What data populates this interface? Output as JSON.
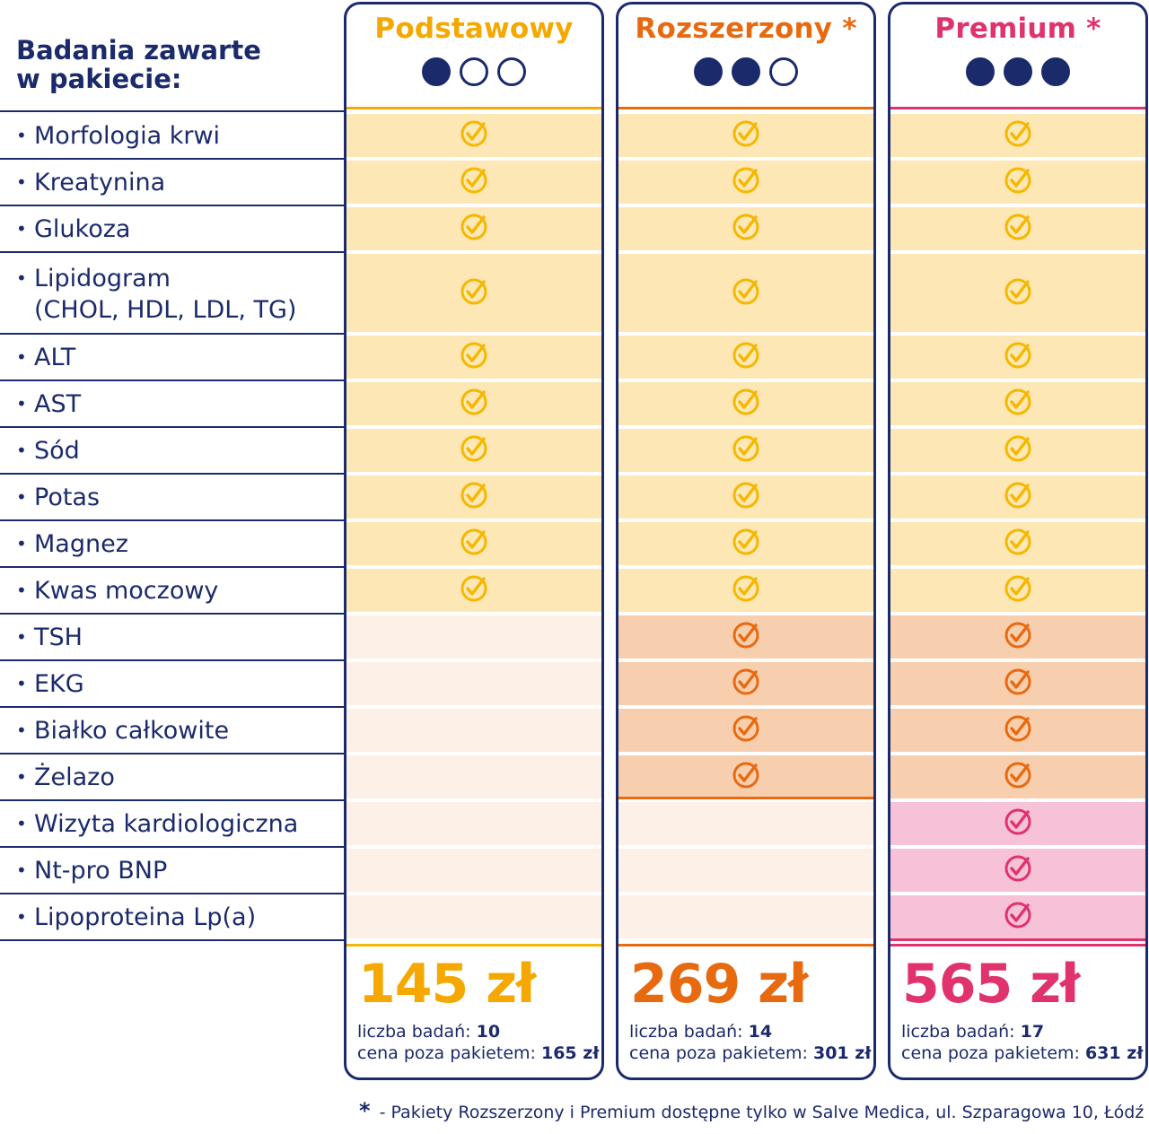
{
  "header": {
    "title_line1": "Badania zawarte",
    "title_line2": "w pakiecie:"
  },
  "packages": [
    {
      "name": "Podstawowy",
      "dots": [
        true,
        false,
        false
      ],
      "color": "#f5a800",
      "price": "145 zł",
      "count_label": "liczba badań:",
      "count": "10",
      "outside_label": "cena poza pakietem:",
      "outside_price": "165 zł"
    },
    {
      "name": "Rozszerzony *",
      "dots": [
        true,
        true,
        false
      ],
      "color": "#e86a10",
      "price": "269 zł",
      "count_label": "liczba badań:",
      "count": "14",
      "outside_label": "cena poza pakietem:",
      "outside_price": "301 zł"
    },
    {
      "name": "Premium *",
      "dots": [
        true,
        true,
        true
      ],
      "color": "#e0336e",
      "price": "565 zł",
      "count_label": "liczba badań:",
      "count": "17",
      "outside_label": "cena poza pakietem:",
      "outside_price": "631 zł"
    }
  ],
  "tests": [
    {
      "label": "Morfologia krwi",
      "included": [
        true,
        true,
        true
      ]
    },
    {
      "label": "Kreatynina",
      "included": [
        true,
        true,
        true
      ]
    },
    {
      "label": "Glukoza",
      "included": [
        true,
        true,
        true
      ]
    },
    {
      "label": "Lipidogram",
      "label2": "(CHOL, HDL, LDL, TG)",
      "included": [
        true,
        true,
        true
      ]
    },
    {
      "label": "ALT",
      "included": [
        true,
        true,
        true
      ]
    },
    {
      "label": "AST",
      "included": [
        true,
        true,
        true
      ]
    },
    {
      "label": "Sód",
      "included": [
        true,
        true,
        true
      ]
    },
    {
      "label": "Potas",
      "included": [
        true,
        true,
        true
      ]
    },
    {
      "label": "Magnez",
      "included": [
        true,
        true,
        true
      ]
    },
    {
      "label": "Kwas moczowy",
      "included": [
        true,
        true,
        true
      ]
    },
    {
      "label": "TSH",
      "included": [
        false,
        true,
        true
      ]
    },
    {
      "label": "EKG",
      "included": [
        false,
        true,
        true
      ]
    },
    {
      "label": "Białko całkowite",
      "included": [
        false,
        true,
        true
      ]
    },
    {
      "label": "Żelazo",
      "included": [
        false,
        true,
        true
      ]
    },
    {
      "label": "Wizyta kardiologiczna",
      "included": [
        false,
        false,
        true
      ]
    },
    {
      "label": "Nt-pro BNP",
      "included": [
        false,
        false,
        true
      ]
    },
    {
      "label": "Lipoproteina Lp(a)",
      "included": [
        false,
        false,
        true
      ]
    }
  ],
  "tier_colors": {
    "basic_fill": "#fde7b4",
    "basic_check": "#f5b800",
    "ext_fill": "#f8cfae",
    "ext_check": "#e86a10",
    "prem_fill": "#f7c2d7",
    "prem_check": "#e0336e",
    "empty_fill": "#fdf0e7",
    "navy": "#1b2a6b"
  },
  "footnote": {
    "star": "*",
    "text": "- Pakiety Rozszerzony i Premium dostępne tylko w Salve Medica, ul. Szparagowa 10, Łódź"
  }
}
